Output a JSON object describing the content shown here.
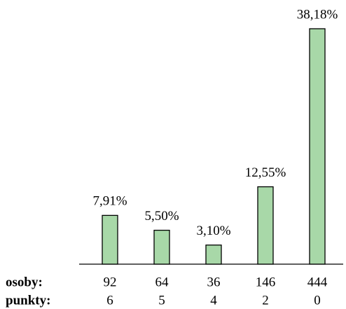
{
  "chart_data": {
    "type": "bar",
    "values": [
      7.91,
      5.5,
      3.1,
      12.55,
      38.18
    ],
    "value_labels": [
      "7,91%",
      "5,50%",
      "3,10%",
      "12,55%",
      "38,18%"
    ],
    "color": "#a8d8a8",
    "row_labels": [
      "osoby:",
      "punkty:"
    ],
    "osoby": [
      92,
      64,
      36,
      146,
      444
    ],
    "punkty": [
      6,
      5,
      4,
      2,
      0
    ]
  }
}
